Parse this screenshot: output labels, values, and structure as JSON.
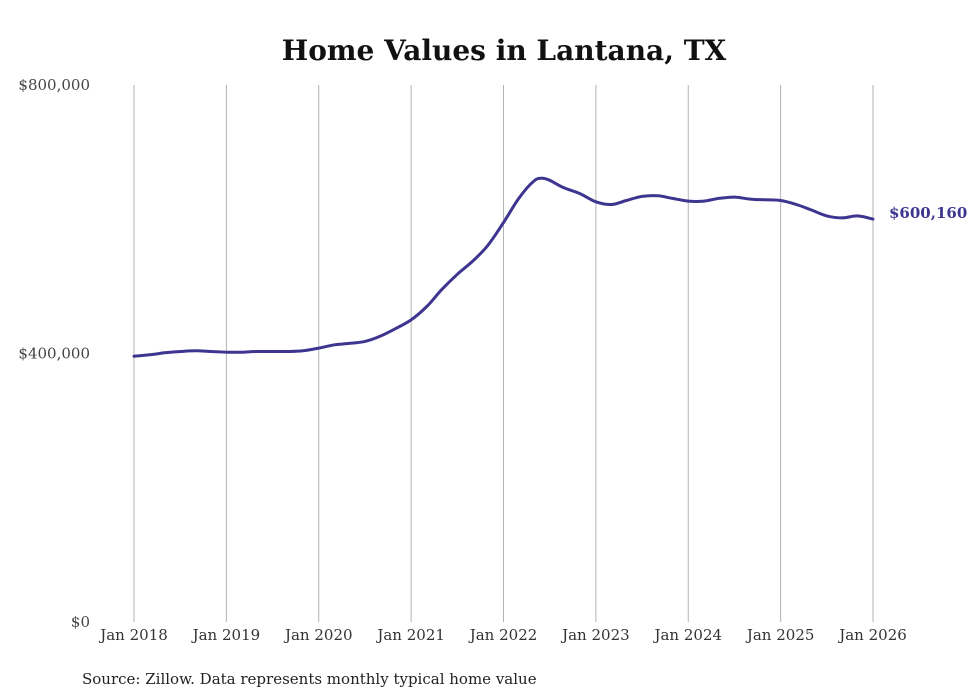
{
  "chart_data": {
    "type": "line",
    "title": "Home Values in Lantana, TX",
    "source": "Source: Zillow. Data represents monthly typical home value",
    "ylim": [
      0,
      800000
    ],
    "yticks": [
      {
        "value": 0,
        "label": "$0"
      },
      {
        "value": 400000,
        "label": "$400,000"
      },
      {
        "value": 800000,
        "label": "$800,000"
      }
    ],
    "xlim": [
      2018.0,
      2026.0
    ],
    "xticks": [
      {
        "value": 2018,
        "label": "Jan 2018"
      },
      {
        "value": 2019,
        "label": "Jan 2019"
      },
      {
        "value": 2020,
        "label": "Jan 2020"
      },
      {
        "value": 2021,
        "label": "Jan 2021"
      },
      {
        "value": 2022,
        "label": "Jan 2022"
      },
      {
        "value": 2023,
        "label": "Jan 2023"
      },
      {
        "value": 2024,
        "label": "Jan 2024"
      },
      {
        "value": 2025,
        "label": "Jan 2025"
      },
      {
        "value": 2026,
        "label": "Jan 2026"
      }
    ],
    "grid": "vertical",
    "series": [
      {
        "name": "Typical home value",
        "color": "#3d3590",
        "end_label": "$600,160",
        "x": [
          2018.0,
          2018.17,
          2018.33,
          2018.5,
          2018.67,
          2018.83,
          2019.0,
          2019.17,
          2019.33,
          2019.5,
          2019.67,
          2019.83,
          2020.0,
          2020.17,
          2020.33,
          2020.5,
          2020.67,
          2020.83,
          2021.0,
          2021.17,
          2021.33,
          2021.5,
          2021.67,
          2021.83,
          2022.0,
          2022.17,
          2022.33,
          2022.42,
          2022.5,
          2022.58,
          2022.67,
          2022.83,
          2023.0,
          2023.17,
          2023.33,
          2023.5,
          2023.67,
          2023.83,
          2024.0,
          2024.17,
          2024.33,
          2024.5,
          2024.67,
          2024.83,
          2025.0,
          2025.17,
          2025.33,
          2025.5,
          2025.67,
          2025.83,
          2026.0
        ],
        "y": [
          396000,
          398000,
          401000,
          403000,
          404000,
          403000,
          402000,
          402000,
          403000,
          403000,
          403000,
          404000,
          408000,
          413000,
          415000,
          418000,
          426000,
          437000,
          450000,
          470000,
          495000,
          518000,
          538000,
          561000,
          595000,
          632000,
          657000,
          661000,
          658000,
          652000,
          646000,
          638000,
          626000,
          622000,
          628000,
          634000,
          635000,
          631000,
          627000,
          627000,
          631000,
          633000,
          630000,
          629000,
          628000,
          622000,
          614000,
          605000,
          602000,
          605000,
          600160
        ]
      }
    ]
  }
}
